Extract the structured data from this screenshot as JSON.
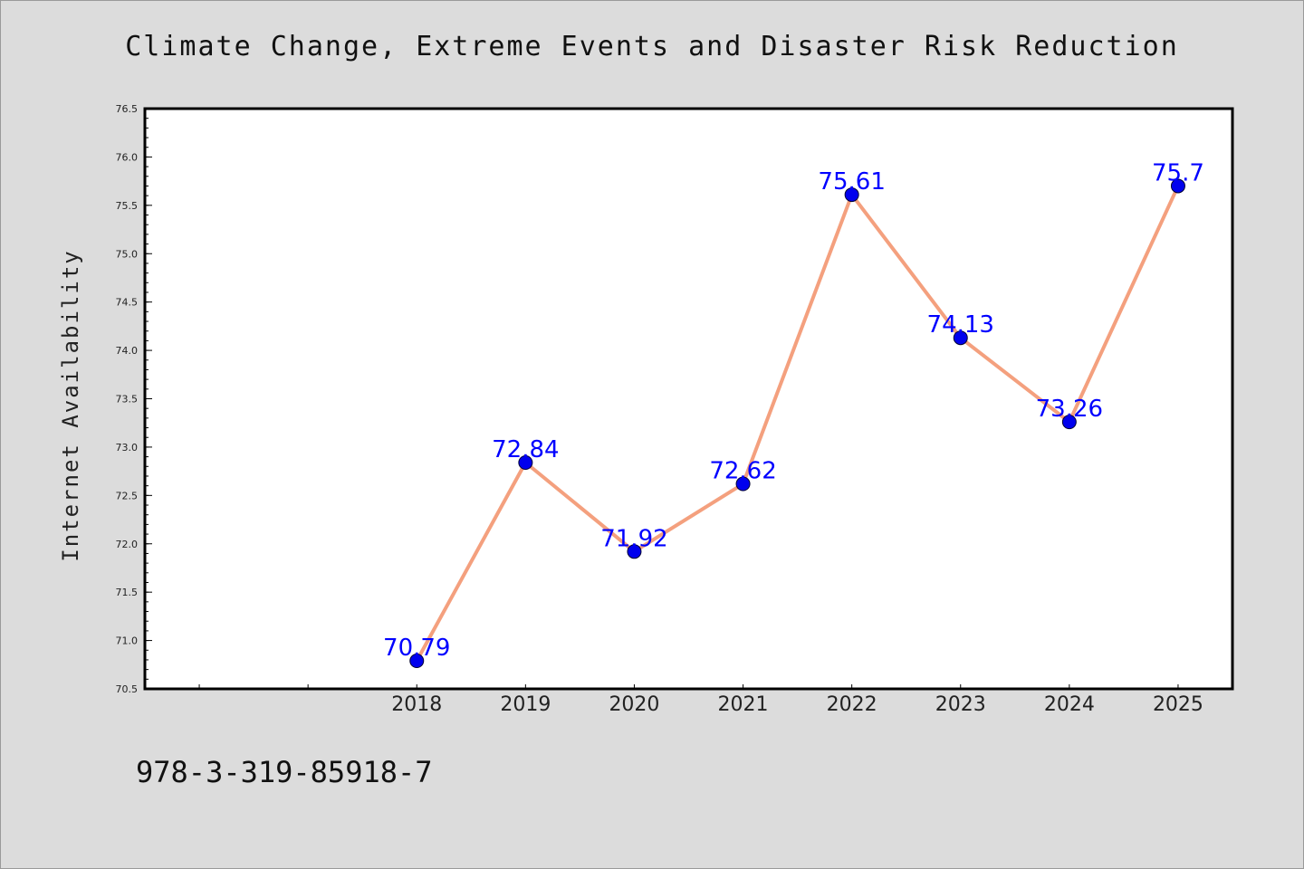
{
  "chart_data": {
    "type": "line",
    "title": "Climate Change, Extreme Events and Disaster Risk Reduction",
    "xlabel": "",
    "ylabel": "Internet Availability",
    "x": [
      2018,
      2019,
      2020,
      2021,
      2022,
      2023,
      2024,
      2025
    ],
    "x_tick_labels": [
      "2018",
      "2019",
      "2020",
      "2021",
      "2022",
      "2023",
      "2024",
      "2025"
    ],
    "xlim": [
      2015.5,
      2025.5
    ],
    "series": [
      {
        "values": [
          70.79,
          72.84,
          71.92,
          72.62,
          75.61,
          74.13,
          73.26,
          75.7
        ],
        "data_labels": [
          "70.79",
          "72.84",
          "71.92",
          "72.62",
          "75.61",
          "74.13",
          "73.26",
          "75.7"
        ],
        "line_color": "#f4a07e",
        "marker_color": "#0000ee"
      }
    ],
    "ylim": [
      70.5,
      76.5
    ],
    "y_ticks": [
      "70.5",
      "71.0",
      "71.5",
      "72.0",
      "72.5",
      "73.0",
      "73.5",
      "74.0",
      "74.5",
      "75.0",
      "75.5",
      "76.0",
      "76.5"
    ],
    "grid": false,
    "legend": "none"
  },
  "footer": {
    "isbn": "978-3-319-85918-7"
  },
  "colors": {
    "background": "#dcdcdc",
    "plot_background": "#ffffff",
    "data_label": "#0000ff"
  }
}
